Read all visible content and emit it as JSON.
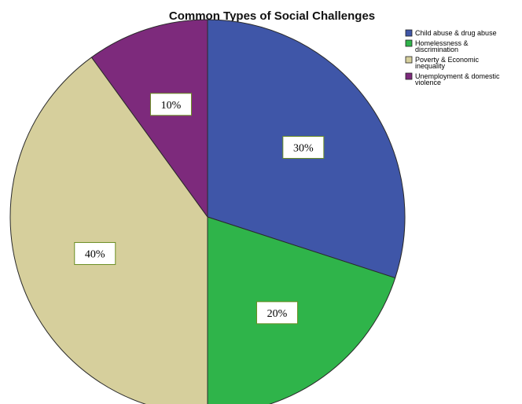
{
  "chart_data": {
    "type": "pie",
    "title": "Common Types of Social Challenges",
    "categories": [
      "Child abuse & drug abuse",
      "Homelessness & discrimination",
      "Poverty & Economic inequality",
      "Unemployment & domestic violence"
    ],
    "legend_lines": [
      [
        "Child abuse & drug abuse"
      ],
      [
        "Homelessness &",
        "discrimination"
      ],
      [
        "Poverty & Economic",
        "inequality"
      ],
      [
        "Unemployment & domestic",
        "violence"
      ]
    ],
    "values": [
      30,
      20,
      40,
      10
    ],
    "data_labels": [
      "30%",
      "20%",
      "40%",
      "10%"
    ],
    "colors": [
      "#3f56a8",
      "#2fb44a",
      "#d6cf9c",
      "#7d2a7c"
    ],
    "start_angle": "12 o'clock",
    "direction": "clockwise",
    "legend_position": "top-right"
  }
}
